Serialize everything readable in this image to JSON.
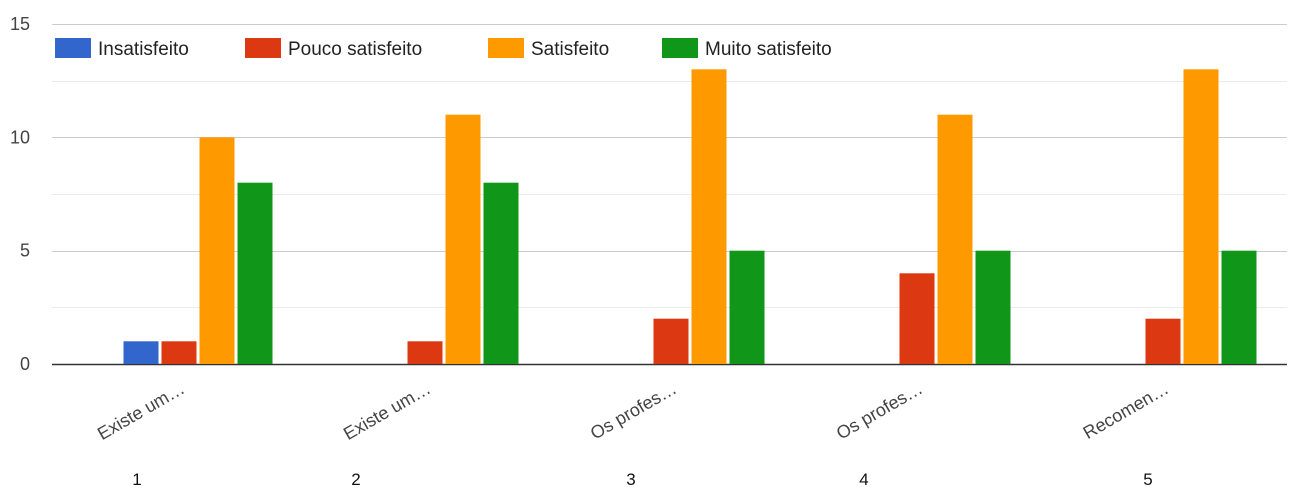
{
  "chart_data": {
    "type": "bar",
    "categories": [
      "Existe um…",
      "Existe um…",
      "Os profes…",
      "Os profes…",
      "Recomen…"
    ],
    "group_numbers": [
      "1",
      "2",
      "3",
      "4",
      "5"
    ],
    "series": [
      {
        "name": "Insatisfeito",
        "color": "#3366cc",
        "values": [
          1,
          0,
          0,
          0,
          0
        ]
      },
      {
        "name": "Pouco satisfeito",
        "color": "#dc3912",
        "values": [
          1,
          1,
          2,
          4,
          2
        ]
      },
      {
        "name": "Satisfeito",
        "color": "#ff9900",
        "values": [
          10,
          11,
          13,
          11,
          13
        ]
      },
      {
        "name": "Muito satisfeito",
        "color": "#109618",
        "values": [
          8,
          8,
          5,
          5,
          5
        ]
      }
    ],
    "yticks": [
      "0",
      "5",
      "10",
      "15"
    ],
    "ylim": [
      0,
      15
    ],
    "grid": true,
    "legend_position": "top-left",
    "title": "",
    "xlabel": "",
    "ylabel": ""
  }
}
